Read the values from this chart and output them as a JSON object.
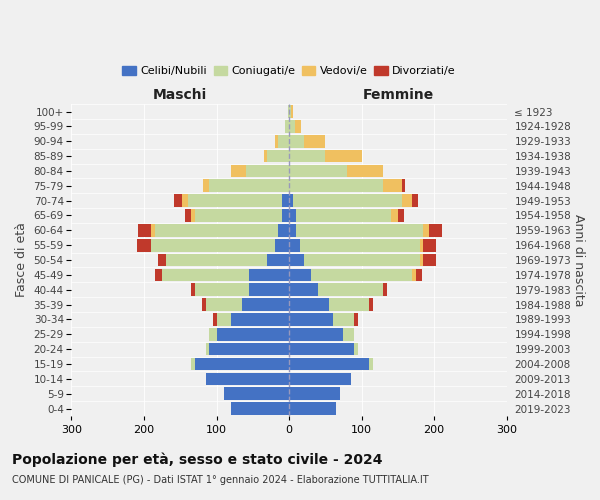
{
  "age_groups": [
    "0-4",
    "5-9",
    "10-14",
    "15-19",
    "20-24",
    "25-29",
    "30-34",
    "35-39",
    "40-44",
    "45-49",
    "50-54",
    "55-59",
    "60-64",
    "65-69",
    "70-74",
    "75-79",
    "80-84",
    "85-89",
    "90-94",
    "95-99",
    "100+"
  ],
  "birth_years": [
    "2019-2023",
    "2014-2018",
    "2009-2013",
    "2004-2008",
    "1999-2003",
    "1994-1998",
    "1989-1993",
    "1984-1988",
    "1979-1983",
    "1974-1978",
    "1969-1973",
    "1964-1968",
    "1959-1963",
    "1954-1958",
    "1949-1953",
    "1944-1948",
    "1939-1943",
    "1934-1938",
    "1929-1933",
    "1924-1928",
    "≤ 1923"
  ],
  "males": {
    "celibinubili": [
      80,
      90,
      115,
      130,
      110,
      100,
      80,
      65,
      55,
      55,
      30,
      20,
      15,
      10,
      10,
      0,
      0,
      0,
      0,
      0,
      0
    ],
    "coniugati": [
      0,
      0,
      0,
      5,
      5,
      10,
      20,
      50,
      75,
      120,
      140,
      170,
      170,
      120,
      130,
      110,
      60,
      30,
      15,
      5,
      2
    ],
    "vedovi": [
      0,
      0,
      0,
      0,
      0,
      0,
      0,
      0,
      0,
      0,
      0,
      0,
      5,
      5,
      8,
      8,
      20,
      5,
      5,
      0,
      0
    ],
    "divorziati": [
      0,
      0,
      0,
      0,
      0,
      0,
      5,
      5,
      5,
      10,
      10,
      20,
      18,
      8,
      10,
      0,
      0,
      0,
      0,
      0,
      0
    ]
  },
  "females": {
    "celibinubili": [
      65,
      70,
      85,
      110,
      90,
      75,
      60,
      55,
      40,
      30,
      20,
      15,
      10,
      10,
      5,
      0,
      0,
      0,
      0,
      0,
      0
    ],
    "coniugati": [
      0,
      0,
      0,
      5,
      5,
      15,
      30,
      55,
      90,
      140,
      160,
      165,
      175,
      130,
      150,
      130,
      80,
      50,
      20,
      8,
      2
    ],
    "vedovi": [
      0,
      0,
      0,
      0,
      0,
      0,
      0,
      0,
      0,
      5,
      5,
      5,
      8,
      10,
      15,
      25,
      50,
      50,
      30,
      8,
      3
    ],
    "divorziati": [
      0,
      0,
      0,
      0,
      0,
      0,
      5,
      5,
      5,
      8,
      18,
      18,
      18,
      8,
      8,
      5,
      0,
      0,
      0,
      0,
      0
    ]
  },
  "colors": {
    "celibinubili": "#4472c4",
    "coniugati": "#c5d9a0",
    "vedovi": "#f0c060",
    "divorziati": "#c0392b"
  },
  "legend_labels": [
    "Celibi/Nubili",
    "Coniugati/e",
    "Vedovi/e",
    "Divorziati/e"
  ],
  "title": "Popolazione per età, sesso e stato civile - 2024",
  "subtitle": "COMUNE DI PANICALE (PG) - Dati ISTAT 1° gennaio 2024 - Elaborazione TUTTITALIA.IT",
  "xlabel_left": "Maschi",
  "xlabel_right": "Femmine",
  "ylabel_left": "Fasce di età",
  "ylabel_right": "Anni di nascita",
  "xlim": 300,
  "background_color": "#f0f0f0"
}
